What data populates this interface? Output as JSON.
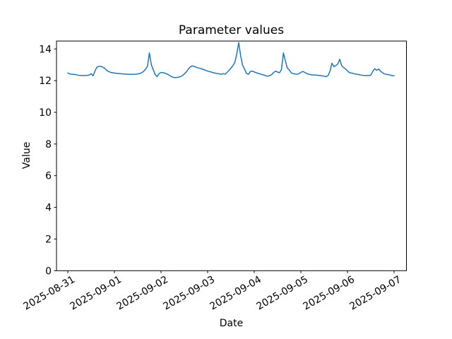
{
  "figure": {
    "background": "#ffffff",
    "axes_edge_color": "#000000"
  },
  "chart_data": {
    "type": "line",
    "title": "Parameter values",
    "xlabel": "Date",
    "ylabel": "Value",
    "legend": "none",
    "grid": false,
    "line_color": "#1f77b4",
    "line_width": 1.5,
    "ylim": [
      0,
      14.5
    ],
    "yticks": [
      0,
      2,
      4,
      6,
      8,
      10,
      12,
      14
    ],
    "x_tick_labels": [
      "2025-08-31",
      "2025-09-01",
      "2025-09-02",
      "2025-09-03",
      "2025-09-04",
      "2025-09-05",
      "2025-09-06",
      "2025-09-07"
    ],
    "x_tick_rotation_deg": 30,
    "x_unit": "hours since 2025-08-31 00:00",
    "x_step_hours": 1,
    "values": [
      12.48,
      12.42,
      12.4,
      12.4,
      12.38,
      12.35,
      12.33,
      12.32,
      12.32,
      12.32,
      12.33,
      12.35,
      12.44,
      12.3,
      12.62,
      12.85,
      12.9,
      12.9,
      12.85,
      12.78,
      12.65,
      12.58,
      12.52,
      12.5,
      12.48,
      12.46,
      12.45,
      12.44,
      12.43,
      12.42,
      12.41,
      12.4,
      12.4,
      12.4,
      12.4,
      12.41,
      12.42,
      12.45,
      12.5,
      12.58,
      12.72,
      12.9,
      13.75,
      13.0,
      12.68,
      12.38,
      12.25,
      12.45,
      12.52,
      12.5,
      12.47,
      12.42,
      12.36,
      12.28,
      12.22,
      12.2,
      12.2,
      12.22,
      12.25,
      12.32,
      12.42,
      12.55,
      12.72,
      12.86,
      12.93,
      12.9,
      12.85,
      12.8,
      12.78,
      12.74,
      12.7,
      12.65,
      12.6,
      12.57,
      12.54,
      12.5,
      12.47,
      12.44,
      12.43,
      12.41,
      12.44,
      12.41,
      12.52,
      12.65,
      12.78,
      12.95,
      13.15,
      13.7,
      14.4,
      13.55,
      12.98,
      12.72,
      12.45,
      12.4,
      12.58,
      12.6,
      12.55,
      12.5,
      12.46,
      12.42,
      12.38,
      12.35,
      12.3,
      12.28,
      12.32,
      12.38,
      12.52,
      12.6,
      12.54,
      12.5,
      12.7,
      13.75,
      13.25,
      12.8,
      12.68,
      12.5,
      12.44,
      12.42,
      12.4,
      12.44,
      12.52,
      12.58,
      12.52,
      12.45,
      12.4,
      12.38,
      12.36,
      12.35,
      12.35,
      12.33,
      12.32,
      12.3,
      12.28,
      12.25,
      12.32,
      12.6,
      13.1,
      12.88,
      12.95,
      13.05,
      13.35,
      12.95,
      12.82,
      12.74,
      12.62,
      12.5,
      12.48,
      12.45,
      12.42,
      12.4,
      12.38,
      12.35,
      12.33,
      12.32,
      12.32,
      12.32,
      12.35,
      12.58,
      12.75,
      12.65,
      12.73,
      12.6,
      12.5,
      12.42,
      12.4,
      12.38,
      12.35,
      12.32,
      12.3
    ]
  }
}
